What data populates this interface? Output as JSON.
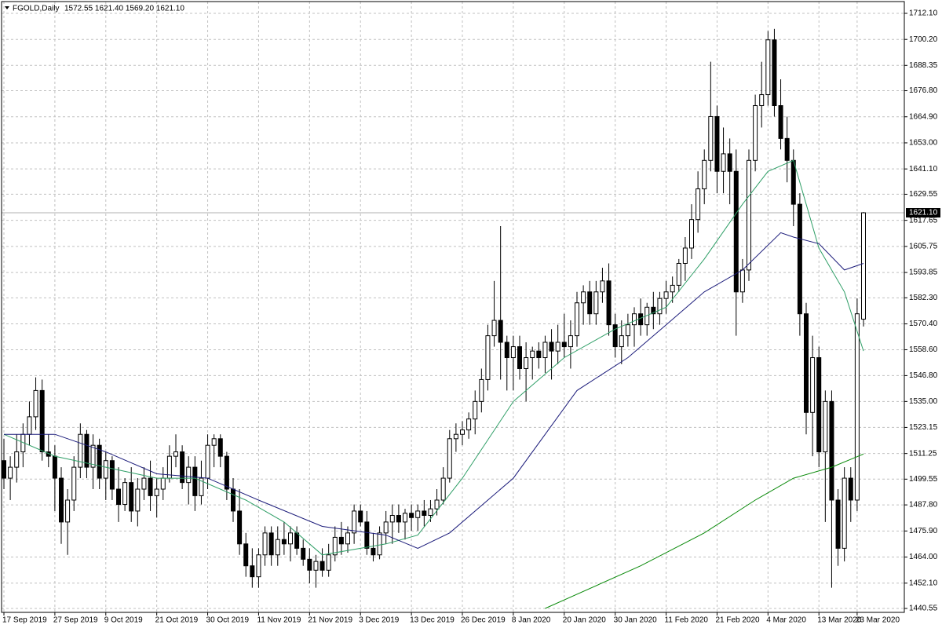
{
  "chart_data": {
    "type": "candlestick",
    "title": "FGOLD,Daily",
    "subtitle": "1572.55 1621.40 1569.20 1621.10",
    "up_color": "#ffffff",
    "down_color": "#000000",
    "grid": true,
    "ylim": [
      1438.76,
      1717.47
    ],
    "yticks": [
      {
        "value": 1440.55,
        "label": "1440.55"
      },
      {
        "value": 1452.1,
        "label": "1452.10"
      },
      {
        "value": 1464,
        "label": "1464.00"
      },
      {
        "value": 1475.9,
        "label": "1475.90"
      },
      {
        "value": 1487.8,
        "label": "1487.80"
      },
      {
        "value": 1499.55,
        "label": "1499.55"
      },
      {
        "value": 1511.25,
        "label": "1511.25"
      },
      {
        "value": 1523.15,
        "label": "1523.15"
      },
      {
        "value": 1535,
        "label": "1535.00"
      },
      {
        "value": 1546.8,
        "label": "1546.80"
      },
      {
        "value": 1558.6,
        "label": "1558.60"
      },
      {
        "value": 1570.4,
        "label": "1570.40"
      },
      {
        "value": 1582.3,
        "label": "1582.30"
      },
      {
        "value": 1593.85,
        "label": "1593.85"
      },
      {
        "value": 1605.75,
        "label": "1605.75"
      },
      {
        "value": 1617.65,
        "label": "1617.65"
      },
      {
        "value": 1629.55,
        "label": "1629.55"
      },
      {
        "value": 1641.1,
        "label": "1641.10"
      },
      {
        "value": 1653,
        "label": "1653.00"
      },
      {
        "value": 1664.9,
        "label": "1664.90"
      },
      {
        "value": 1676.8,
        "label": "1676.80"
      },
      {
        "value": 1688.35,
        "label": "1688.35"
      },
      {
        "value": 1700.2,
        "label": "1700.20"
      },
      {
        "value": 1712.1,
        "label": "1712.10"
      }
    ],
    "last_price": {
      "value": 1621.1,
      "label": "1621.10"
    },
    "categories": [
      "17 Sep 2019",
      null,
      null,
      null,
      null,
      null,
      null,
      null,
      "27 Sep 2019",
      null,
      null,
      null,
      null,
      null,
      null,
      null,
      "9 Oct 2019",
      null,
      null,
      null,
      null,
      null,
      null,
      null,
      "21 Oct 2019",
      null,
      null,
      null,
      null,
      null,
      null,
      null,
      "30 Oct 2019",
      null,
      null,
      null,
      null,
      null,
      null,
      null,
      "11 Nov 2019",
      null,
      null,
      null,
      null,
      null,
      null,
      null,
      "21 Nov 2019",
      null,
      null,
      null,
      null,
      null,
      null,
      null,
      "3 Dec 2019",
      null,
      null,
      null,
      null,
      null,
      null,
      null,
      "13 Dec 2019",
      null,
      null,
      null,
      null,
      null,
      null,
      null,
      "26 Dec 2019",
      null,
      null,
      null,
      null,
      null,
      null,
      null,
      "8 Jan 2020",
      null,
      null,
      null,
      null,
      null,
      null,
      null,
      "20 Jan 2020",
      null,
      null,
      null,
      null,
      null,
      null,
      null,
      "30 Jan 2020",
      null,
      null,
      null,
      null,
      null,
      null,
      null,
      "11 Feb 2020",
      null,
      null,
      null,
      null,
      null,
      null,
      null,
      "21 Feb 2020",
      null,
      null,
      null,
      null,
      null,
      null,
      null,
      "4 Mar 2020",
      null,
      null,
      null,
      null,
      null,
      null,
      null,
      "13 Mar 2020",
      null,
      null,
      null,
      null,
      null,
      "23 Mar 2020",
      null
    ],
    "open": [
      1508,
      1500,
      1505,
      1512,
      1520,
      1528,
      1540,
      1512,
      1510,
      1500,
      1480,
      1490,
      1505,
      1520,
      1505,
      1515,
      1500,
      1508,
      1495,
      1488,
      1498,
      1485,
      1495,
      1500,
      1492,
      1495,
      1500,
      1510,
      1512,
      1498,
      1505,
      1492,
      1500,
      1515,
      1518,
      1510,
      1495,
      1485,
      1470,
      1460,
      1455,
      1465,
      1475,
      1465,
      1472,
      1470,
      1475,
      1468,
      1463,
      1458,
      1462,
      1458,
      1465,
      1473,
      1470,
      1475,
      1485,
      1480,
      1468,
      1465,
      1475,
      1480,
      1483,
      1480,
      1484,
      1482,
      1485,
      1483,
      1486,
      1490,
      1500,
      1518,
      1520,
      1522,
      1527,
      1535,
      1545,
      1565,
      1572,
      1562,
      1555,
      1560,
      1550,
      1555,
      1558,
      1555,
      1562,
      1558,
      1562,
      1560,
      1565,
      1580,
      1585,
      1575,
      1585,
      1590,
      1570,
      1560,
      1565,
      1570,
      1575,
      1570,
      1578,
      1575,
      1582,
      1585,
      1588,
      1598,
      1605,
      1618,
      1632,
      1645,
      1665,
      1640,
      1648,
      1640,
      1585,
      1595,
      1645,
      1670,
      1675,
      1700,
      1670,
      1655,
      1645,
      1625,
      1575,
      1530,
      1555,
      1512,
      1535,
      1490,
      1468,
      1500,
      1490,
      1572.55
    ],
    "high": [
      1518,
      1510,
      1520,
      1525,
      1535,
      1546,
      1545,
      1520,
      1515,
      1505,
      1495,
      1510,
      1525,
      1522,
      1520,
      1518,
      1512,
      1510,
      1505,
      1500,
      1505,
      1500,
      1505,
      1508,
      1500,
      1505,
      1515,
      1520,
      1515,
      1510,
      1510,
      1508,
      1520,
      1520,
      1520,
      1512,
      1500,
      1495,
      1475,
      1468,
      1468,
      1478,
      1478,
      1478,
      1480,
      1478,
      1478,
      1472,
      1468,
      1465,
      1468,
      1470,
      1478,
      1480,
      1478,
      1488,
      1488,
      1485,
      1475,
      1478,
      1485,
      1488,
      1488,
      1486,
      1488,
      1488,
      1490,
      1490,
      1495,
      1505,
      1522,
      1525,
      1526,
      1530,
      1540,
      1550,
      1570,
      1590,
      1615,
      1565,
      1565,
      1565,
      1562,
      1560,
      1562,
      1565,
      1568,
      1570,
      1575,
      1572,
      1585,
      1588,
      1590,
      1590,
      1596,
      1598,
      1575,
      1572,
      1575,
      1578,
      1582,
      1580,
      1585,
      1585,
      1590,
      1592,
      1600,
      1610,
      1625,
      1640,
      1650,
      1690,
      1670,
      1660,
      1655,
      1650,
      1600,
      1650,
      1675,
      1690,
      1704,
      1705,
      1682,
      1665,
      1650,
      1630,
      1580,
      1565,
      1560,
      1540,
      1540,
      1495,
      1505,
      1505,
      1582,
      1621.4
    ],
    "low": [
      1495,
      1490,
      1498,
      1505,
      1515,
      1522,
      1508,
      1505,
      1485,
      1470,
      1465,
      1485,
      1500,
      1500,
      1495,
      1495,
      1490,
      1490,
      1480,
      1485,
      1480,
      1478,
      1490,
      1485,
      1482,
      1490,
      1498,
      1505,
      1495,
      1488,
      1485,
      1488,
      1495,
      1505,
      1505,
      1490,
      1480,
      1465,
      1455,
      1450,
      1450,
      1460,
      1460,
      1460,
      1465,
      1462,
      1465,
      1460,
      1452,
      1450,
      1455,
      1455,
      1462,
      1465,
      1466,
      1470,
      1478,
      1465,
      1462,
      1463,
      1470,
      1470,
      1475,
      1472,
      1476,
      1476,
      1478,
      1480,
      1483,
      1488,
      1498,
      1512,
      1515,
      1518,
      1520,
      1530,
      1540,
      1560,
      1545,
      1540,
      1540,
      1545,
      1535,
      1545,
      1550,
      1548,
      1545,
      1552,
      1555,
      1550,
      1560,
      1570,
      1570,
      1570,
      1580,
      1565,
      1555,
      1552,
      1560,
      1560,
      1565,
      1565,
      1568,
      1570,
      1575,
      1580,
      1585,
      1590,
      1600,
      1612,
      1625,
      1640,
      1630,
      1630,
      1625,
      1565,
      1580,
      1590,
      1640,
      1660,
      1670,
      1665,
      1650,
      1635,
      1615,
      1565,
      1520,
      1510,
      1505,
      1480,
      1450,
      1460,
      1462,
      1480,
      1485,
      1569.2
    ],
    "close": [
      1500,
      1505,
      1512,
      1520,
      1528,
      1540,
      1512,
      1510,
      1500,
      1480,
      1490,
      1505,
      1520,
      1505,
      1515,
      1500,
      1508,
      1495,
      1488,
      1498,
      1485,
      1495,
      1500,
      1492,
      1495,
      1500,
      1510,
      1512,
      1498,
      1505,
      1492,
      1500,
      1515,
      1518,
      1510,
      1495,
      1485,
      1470,
      1460,
      1455,
      1465,
      1475,
      1465,
      1472,
      1470,
      1475,
      1468,
      1463,
      1458,
      1462,
      1458,
      1465,
      1473,
      1470,
      1475,
      1485,
      1480,
      1468,
      1465,
      1475,
      1480,
      1483,
      1480,
      1484,
      1482,
      1485,
      1483,
      1486,
      1490,
      1500,
      1518,
      1520,
      1522,
      1527,
      1535,
      1545,
      1565,
      1572,
      1562,
      1555,
      1560,
      1550,
      1555,
      1558,
      1555,
      1562,
      1558,
      1562,
      1560,
      1565,
      1580,
      1585,
      1575,
      1585,
      1590,
      1570,
      1560,
      1565,
      1570,
      1575,
      1570,
      1578,
      1575,
      1582,
      1585,
      1588,
      1598,
      1605,
      1618,
      1632,
      1645,
      1665,
      1640,
      1648,
      1640,
      1585,
      1595,
      1645,
      1670,
      1675,
      1700,
      1670,
      1655,
      1645,
      1625,
      1575,
      1530,
      1555,
      1512,
      1535,
      1490,
      1468,
      1500,
      1490,
      1575,
      1621.1
    ],
    "series": [
      {
        "color": "#2e9e66",
        "x": [
          0,
          8,
          16,
          24,
          30,
          38,
          44,
          50,
          56,
          60,
          65,
          72,
          80,
          88,
          96,
          104,
          110,
          116,
          120,
          124,
          128,
          132,
          135
        ],
        "values": [
          1520,
          1510,
          1505,
          1500,
          1500,
          1490,
          1480,
          1465,
          1468,
          1470,
          1474,
          1500,
          1535,
          1555,
          1568,
          1578,
          1600,
          1625,
          1640,
          1645,
          1605,
          1585,
          1558
        ]
      },
      {
        "color": "#1b1b7a",
        "x": [
          0,
          8,
          16,
          24,
          32,
          40,
          50,
          60,
          65,
          70,
          80,
          90,
          98,
          104,
          110,
          116,
          122,
          124,
          128,
          132,
          135
        ],
        "values": [
          1520,
          1520,
          1512,
          1502,
          1500,
          1490,
          1478,
          1474,
          1468,
          1475,
          1500,
          1540,
          1555,
          1570,
          1585,
          1595,
          1612,
          1610,
          1607,
          1595,
          1598
        ]
      },
      {
        "color": "#0a8a0a",
        "x": [
          85,
          100,
          110,
          118,
          124,
          130,
          135
        ],
        "values": [
          1440.55,
          1460,
          1475,
          1490,
          1500,
          1505,
          1511
        ]
      }
    ]
  }
}
